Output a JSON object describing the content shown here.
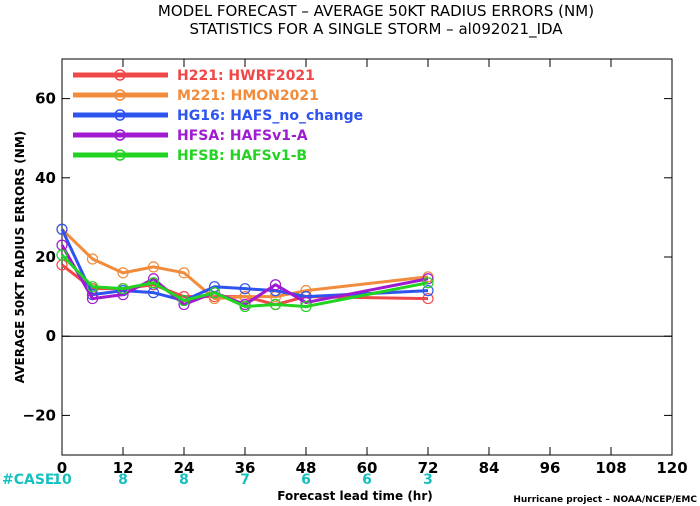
{
  "title_line1": "MODEL FORECAST – AVERAGE 50KT RADIUS ERRORS (NM)",
  "title_line2": "STATISTICS FOR A SINGLE STORM – al092021_IDA",
  "credit": "Hurricane project – NOAA/NCEP/EMC",
  "cases": {
    "label": "#CASE",
    "hours": [
      0,
      12,
      24,
      36,
      48,
      60,
      72
    ],
    "values": [
      "10",
      "8",
      "8",
      "7",
      "6",
      "6",
      "3"
    ]
  },
  "chart_data": {
    "type": "line",
    "title": "MODEL FORECAST – AVERAGE 50KT RADIUS ERRORS (NM) / STATISTICS FOR A SINGLE STORM – al092021_IDA",
    "xlabel": "Forecast lead time (hr)",
    "ylabel": "AVERAGE 50KT RADIUS ERRORS (NM)",
    "xlim": [
      0,
      120
    ],
    "ylim": [
      -30,
      70
    ],
    "xticks": [
      0,
      12,
      24,
      36,
      48,
      60,
      72,
      84,
      96,
      108,
      120
    ],
    "yticks": [
      -20,
      0,
      20,
      40,
      60
    ],
    "zero_line": true,
    "legend_position": "top-left",
    "series": [
      {
        "name": "H221: HWRF2021",
        "color": "#f04848",
        "x": [
          0,
          6,
          12,
          18,
          24,
          30,
          36,
          42,
          48,
          72
        ],
        "y": [
          18,
          12,
          12,
          13,
          10,
          10,
          10,
          8,
          10,
          9.5
        ]
      },
      {
        "name": "M221: HMON2021",
        "color": "#f08c3c",
        "x": [
          0,
          6,
          12,
          18,
          24,
          30,
          36,
          42,
          48,
          72
        ],
        "y": [
          27,
          19.5,
          16,
          17.5,
          16,
          9.5,
          10,
          10,
          11.5,
          15
        ]
      },
      {
        "name": "HG16: HAFS_no_change",
        "color": "#2e54f0",
        "x": [
          0,
          6,
          12,
          18,
          24,
          30,
          36,
          42,
          48,
          72
        ],
        "y": [
          27,
          10.5,
          11.5,
          11,
          9,
          12.5,
          12,
          11.5,
          10,
          11.5
        ]
      },
      {
        "name": "HFSA: HAFSv1-A",
        "color": "#a01ad0",
        "x": [
          0,
          6,
          12,
          18,
          24,
          30,
          36,
          42,
          48,
          72
        ],
        "y": [
          23,
          9.5,
          10.5,
          14.5,
          8,
          11,
          8,
          13,
          8.5,
          14.5
        ]
      },
      {
        "name": "HFSB: HAFSv1-B",
        "color": "#22d322",
        "x": [
          0,
          6,
          12,
          18,
          24,
          30,
          36,
          42,
          48,
          72
        ],
        "y": [
          20.5,
          12.5,
          12,
          13.5,
          9,
          11,
          7.5,
          8,
          7.5,
          13.5
        ]
      }
    ]
  }
}
